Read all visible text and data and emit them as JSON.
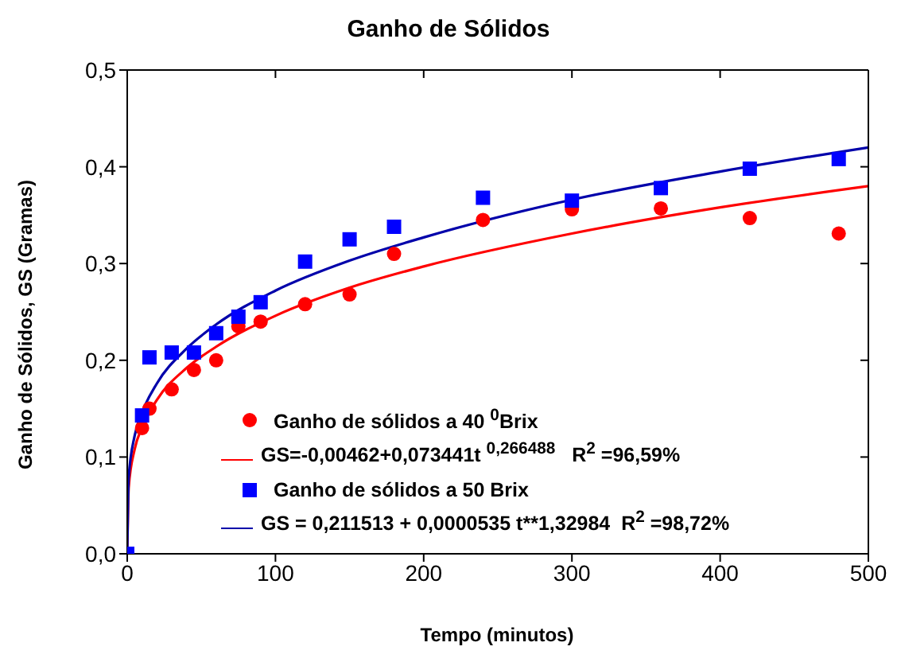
{
  "chart_data": {
    "type": "scatter",
    "title": "Ganho de Sólidos",
    "xlabel": "Tempo (minutos)",
    "ylabel": "Ganho de Sólidos, GS (Gramas)",
    "xlim": [
      0,
      500
    ],
    "xticks": [
      0,
      100,
      200,
      300,
      400,
      500
    ],
    "ylim": [
      0,
      0.5
    ],
    "yticks": [
      {
        "value": 0,
        "label": "0,0"
      },
      {
        "value": 0.1,
        "label": "0,1"
      },
      {
        "value": 0.2,
        "label": "0,2"
      },
      {
        "value": 0.3,
        "label": "0,3"
      },
      {
        "value": 0.4,
        "label": "0,4"
      },
      {
        "value": 0.5,
        "label": "0,5"
      }
    ],
    "legend": "bottom right",
    "series": [
      {
        "name": "Ganho de sólidos a 40 $^{0}$Brix",
        "marker": "circle",
        "color": "#ff0000",
        "x": [
          10,
          15,
          30,
          45,
          60,
          75,
          90,
          120,
          150,
          180,
          240,
          300,
          360,
          420,
          480
        ],
        "values": [
          0.13,
          0.15,
          0.17,
          0.19,
          0.2,
          0.235,
          0.24,
          0.258,
          0.268,
          0.31,
          0.345,
          0.356,
          0.357,
          0.347,
          0.331
        ]
      },
      {
        "name": "GS=-0,00462+0,073441t $^{0,266488}$   R$^{2}$ =96,59%",
        "type": "line",
        "marker": "none",
        "color": "#ff0000",
        "x": [
          0,
          1,
          5,
          10,
          20,
          40,
          60,
          100,
          150,
          200,
          300,
          400,
          500
        ],
        "values": [
          0,
          0.069,
          0.108,
          0.131,
          0.159,
          0.192,
          0.214,
          0.246,
          0.275,
          0.297,
          0.331,
          0.358,
          0.38
        ]
      },
      {
        "name": "Ganho de sólidos a 50 Brix",
        "marker": "square",
        "color": "#0000ff",
        "x": [
          0,
          10,
          15,
          30,
          45,
          60,
          75,
          90,
          120,
          150,
          180,
          240,
          300,
          360,
          420,
          480
        ],
        "values": [
          0,
          0.143,
          0.203,
          0.208,
          0.208,
          0.228,
          0.245,
          0.26,
          0.302,
          0.325,
          0.338,
          0.368,
          0.365,
          0.378,
          0.398,
          0.408
        ]
      },
      {
        "name": "GS = 0,211513 + 0,0000535 t**1,32984  R$^{2}$ =98,72%",
        "type": "line",
        "marker": "none",
        "color": "#0000aa",
        "x": [
          0,
          1,
          5,
          10,
          20,
          40,
          60,
          100,
          150,
          200,
          300,
          400,
          500
        ],
        "values": [
          0,
          0.079,
          0.122,
          0.146,
          0.176,
          0.212,
          0.237,
          0.272,
          0.303,
          0.327,
          0.366,
          0.395,
          0.42
        ]
      }
    ]
  }
}
